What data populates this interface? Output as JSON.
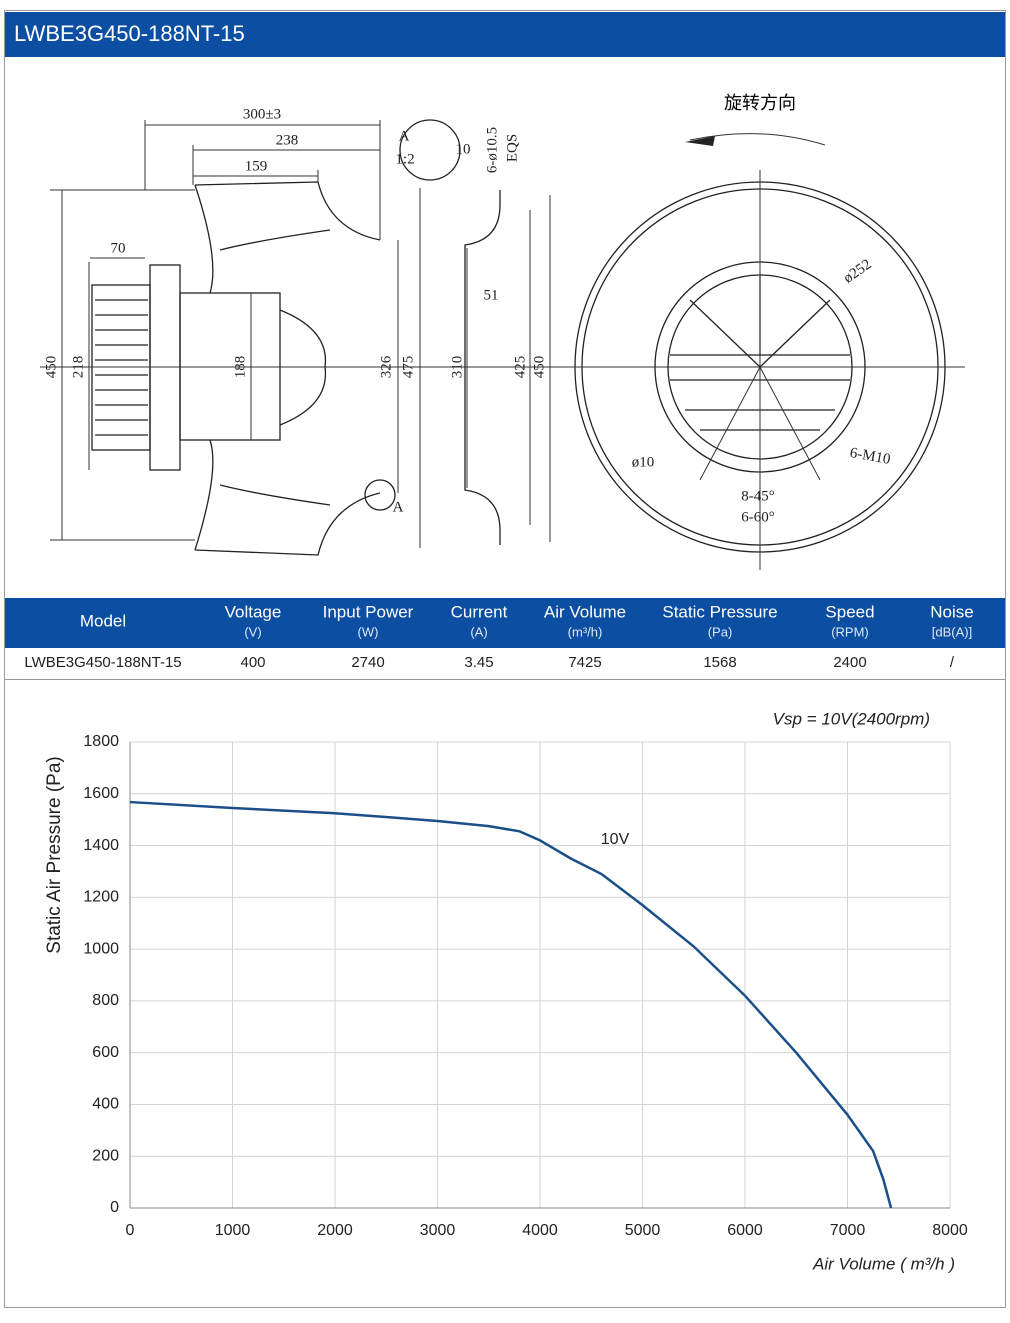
{
  "header": {
    "title": "LWBE3G450-188NT-15"
  },
  "drawing": {
    "rotation_label": "旋转方向",
    "dimensions": [
      "300±3",
      "238",
      "159",
      "70",
      "450",
      "218",
      "188",
      "326",
      "475",
      "A",
      "1:2",
      "10",
      "6-ø10.5",
      "EQS",
      "51",
      "310",
      "425",
      "450",
      "ø252",
      "ø10",
      "6-M10",
      "8-45°",
      "6-60°",
      "A"
    ]
  },
  "table": {
    "columns": [
      {
        "name": "Model"
      },
      {
        "name": "Voltage",
        "unit": "(V)"
      },
      {
        "name": "Input Power",
        "unit": "(W)"
      },
      {
        "name": "Current",
        "unit": "(A)"
      },
      {
        "name": "Air Volume",
        "unit": "(m³/h)"
      },
      {
        "name": "Static Pressure",
        "unit": "(Pa)"
      },
      {
        "name": "Speed",
        "unit": "(RPM)"
      },
      {
        "name": "Noise",
        "unit": "[dB(A)]"
      }
    ],
    "rows": [
      [
        "LWBE3G450-188NT-15",
        400,
        2740,
        3.45,
        7425,
        1568,
        2400,
        "/"
      ]
    ]
  },
  "chart_data": {
    "type": "line",
    "annotation": "Vsp = 10V(2400rpm)",
    "x_label": "Air Volume ( m³/h )",
    "y_label": "Static Air Pressure  (Pa)",
    "x": [
      0,
      1000,
      2000,
      3000,
      3500,
      3800,
      4000,
      4300,
      4600,
      5000,
      5500,
      6000,
      6500,
      7000,
      7250,
      7350,
      7425
    ],
    "series": [
      {
        "name": "10V",
        "color": "#1b4f8a",
        "values": [
          1568,
          1545,
          1525,
          1495,
          1475,
          1455,
          1420,
          1350,
          1290,
          1170,
          1010,
          820,
          600,
          360,
          220,
          110,
          0
        ]
      }
    ],
    "xlim": [
      0,
      8000
    ],
    "xticks": [
      0,
      1000,
      2000,
      3000,
      4000,
      5000,
      6000,
      7000,
      8000
    ],
    "ylim": [
      0,
      1800
    ],
    "yticks": [
      0,
      200,
      400,
      600,
      800,
      1000,
      1200,
      1400,
      1600,
      1800
    ],
    "grid": true
  }
}
